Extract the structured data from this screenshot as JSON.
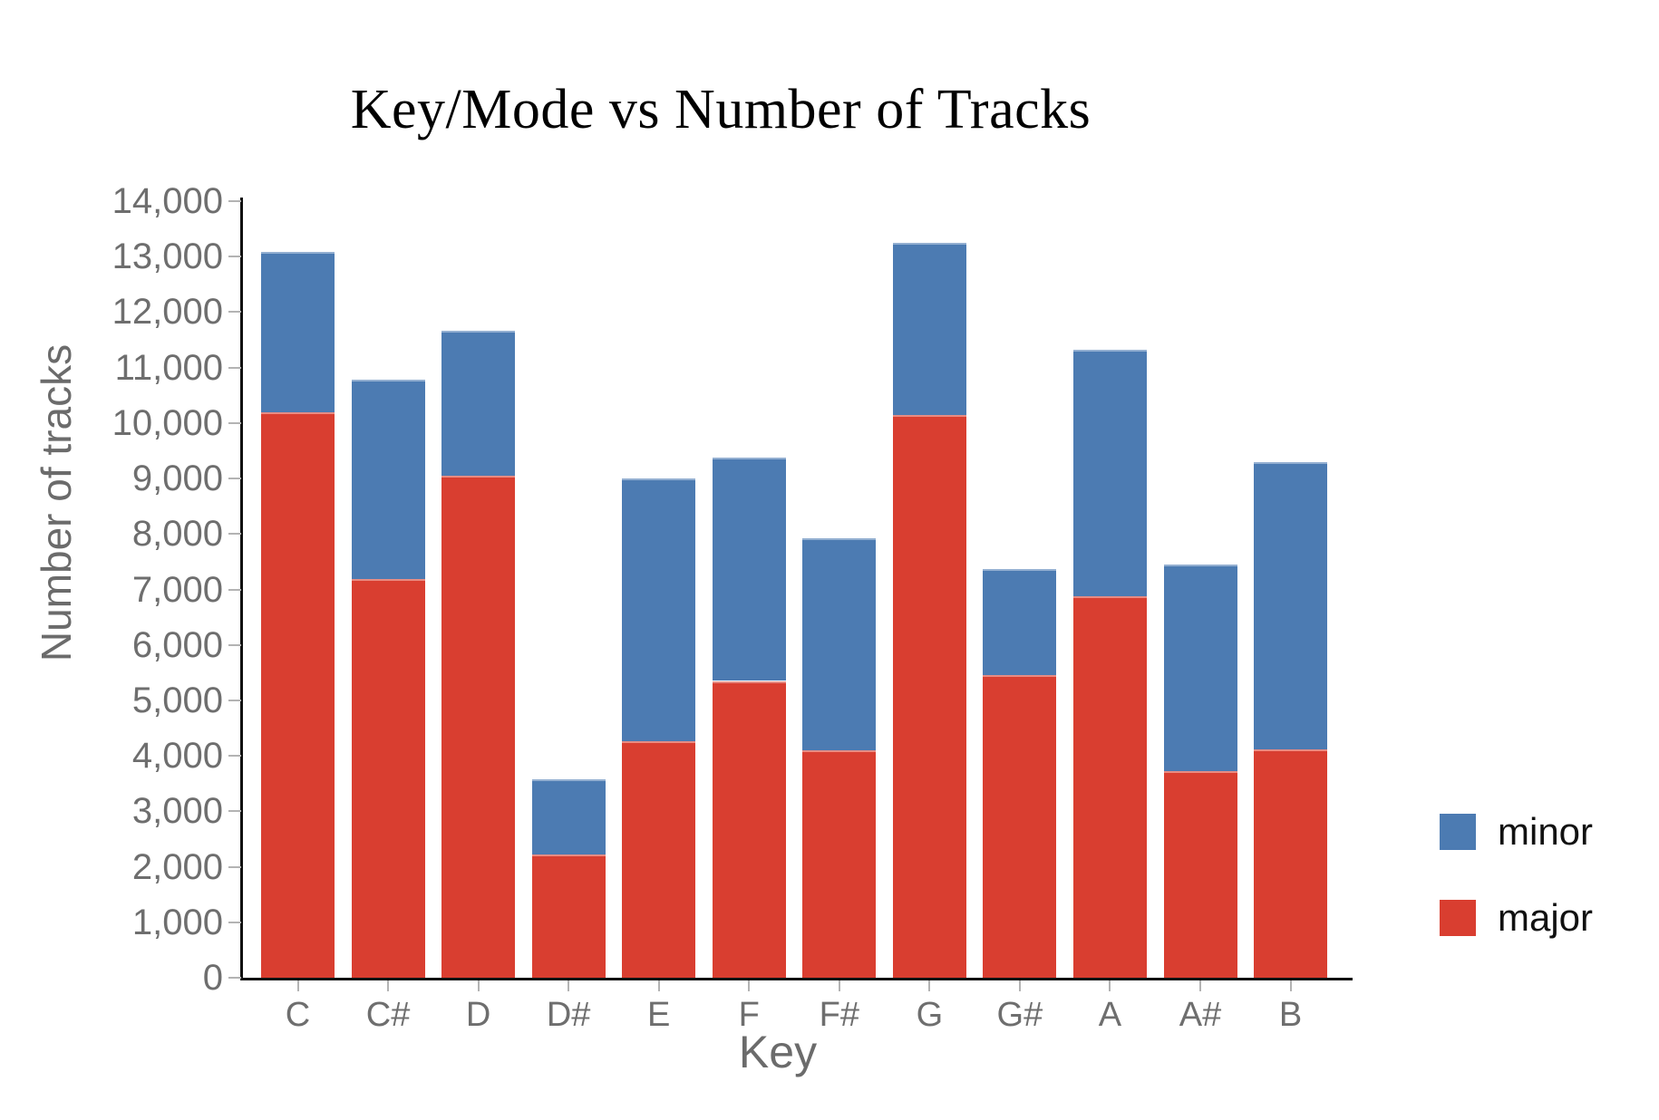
{
  "chart_data": {
    "type": "bar",
    "stacked": true,
    "title": "Key/Mode vs Number of Tracks",
    "xlabel": "Key",
    "ylabel": "Number of tracks",
    "categories": [
      "C",
      "C#",
      "D",
      "D#",
      "E",
      "F",
      "F#",
      "G",
      "G#",
      "A",
      "A#",
      "B"
    ],
    "series": [
      {
        "name": "major",
        "color": "#d93e30",
        "values": [
          10200,
          7180,
          9050,
          2220,
          4270,
          5350,
          4100,
          10140,
          5450,
          6870,
          3720,
          4110
        ]
      },
      {
        "name": "minor",
        "color": "#4c7bb2",
        "values": [
          2880,
          3600,
          2610,
          1360,
          4730,
          4030,
          3830,
          3110,
          1910,
          4450,
          3730,
          5190
        ]
      }
    ],
    "totals": [
      13080,
      10780,
      11660,
      3580,
      9000,
      9380,
      7930,
      13250,
      7360,
      11320,
      7450,
      9300
    ],
    "ylim": [
      0,
      14000
    ],
    "ytick_step": 1000,
    "ytick_labels": [
      "0",
      "1,000",
      "2,000",
      "3,000",
      "4,000",
      "5,000",
      "6,000",
      "7,000",
      "8,000",
      "9,000",
      "10,000",
      "11,000",
      "12,000",
      "13,000",
      "14,000"
    ],
    "grid": false,
    "legend": {
      "position": "right",
      "items": [
        {
          "label": "minor",
          "color": "#4c7bb2"
        },
        {
          "label": "major",
          "color": "#d93e30"
        }
      ]
    }
  },
  "colors": {
    "axis": "#0f0f0f",
    "tick": "#b3b3b3",
    "tick_label": "#6e6e6e",
    "axis_title": "#6b6b6b",
    "title_text": "#000000",
    "background": "#ffffff"
  }
}
